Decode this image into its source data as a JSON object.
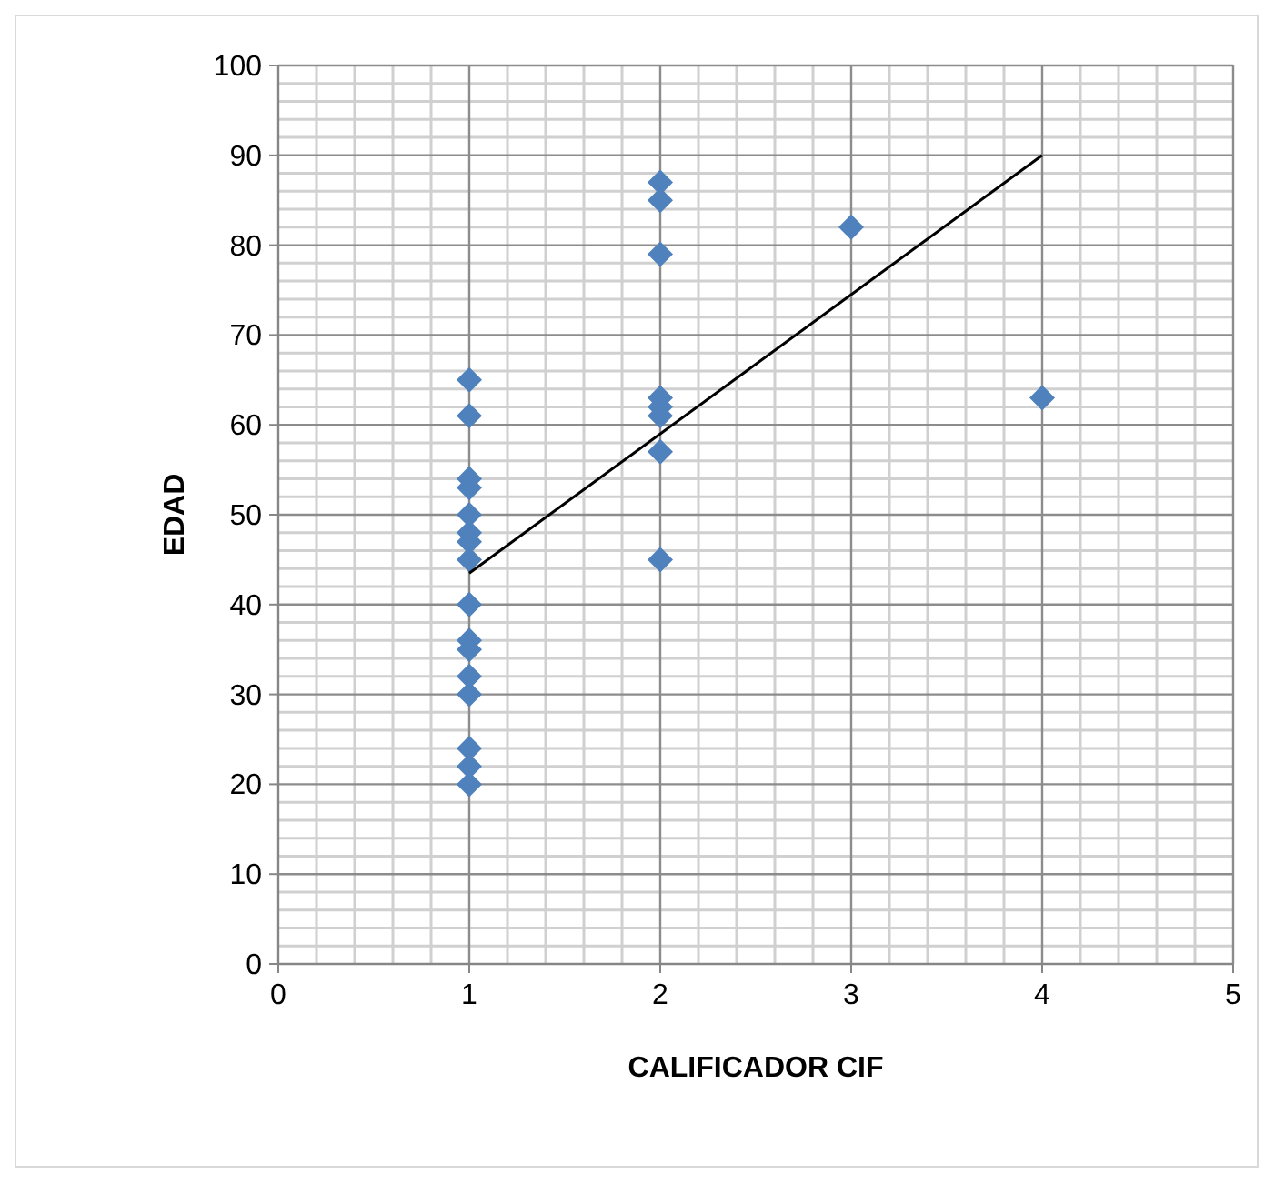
{
  "chart_data": {
    "type": "scatter",
    "xlabel": "CALIFICADOR CIF",
    "ylabel": "EDAD",
    "xlim": [
      0,
      5
    ],
    "ylim": [
      0,
      100
    ],
    "xticks": [
      0,
      1,
      2,
      3,
      4,
      5
    ],
    "yticks": [
      0,
      10,
      20,
      30,
      40,
      50,
      60,
      70,
      80,
      90,
      100
    ],
    "grid": true,
    "marker": "diamond",
    "series": [
      {
        "color": "#4f81bd",
        "x": [
          1,
          1,
          1,
          1,
          1,
          1,
          1,
          1,
          1,
          1,
          1,
          1,
          1,
          1,
          1,
          1,
          2,
          2,
          2,
          2,
          2,
          2,
          2,
          2,
          3,
          4
        ],
        "values": [
          65,
          61,
          54,
          53,
          50,
          48,
          47,
          45,
          40,
          36,
          35,
          32,
          30,
          24,
          22,
          20,
          87,
          85,
          79,
          63,
          62,
          61,
          57,
          45,
          82,
          63
        ]
      },
      {
        "type": "line",
        "color": "#000000",
        "marker": "none",
        "line_style": "solid",
        "x": [
          1,
          4
        ],
        "values": [
          43.5,
          90
        ]
      }
    ]
  }
}
